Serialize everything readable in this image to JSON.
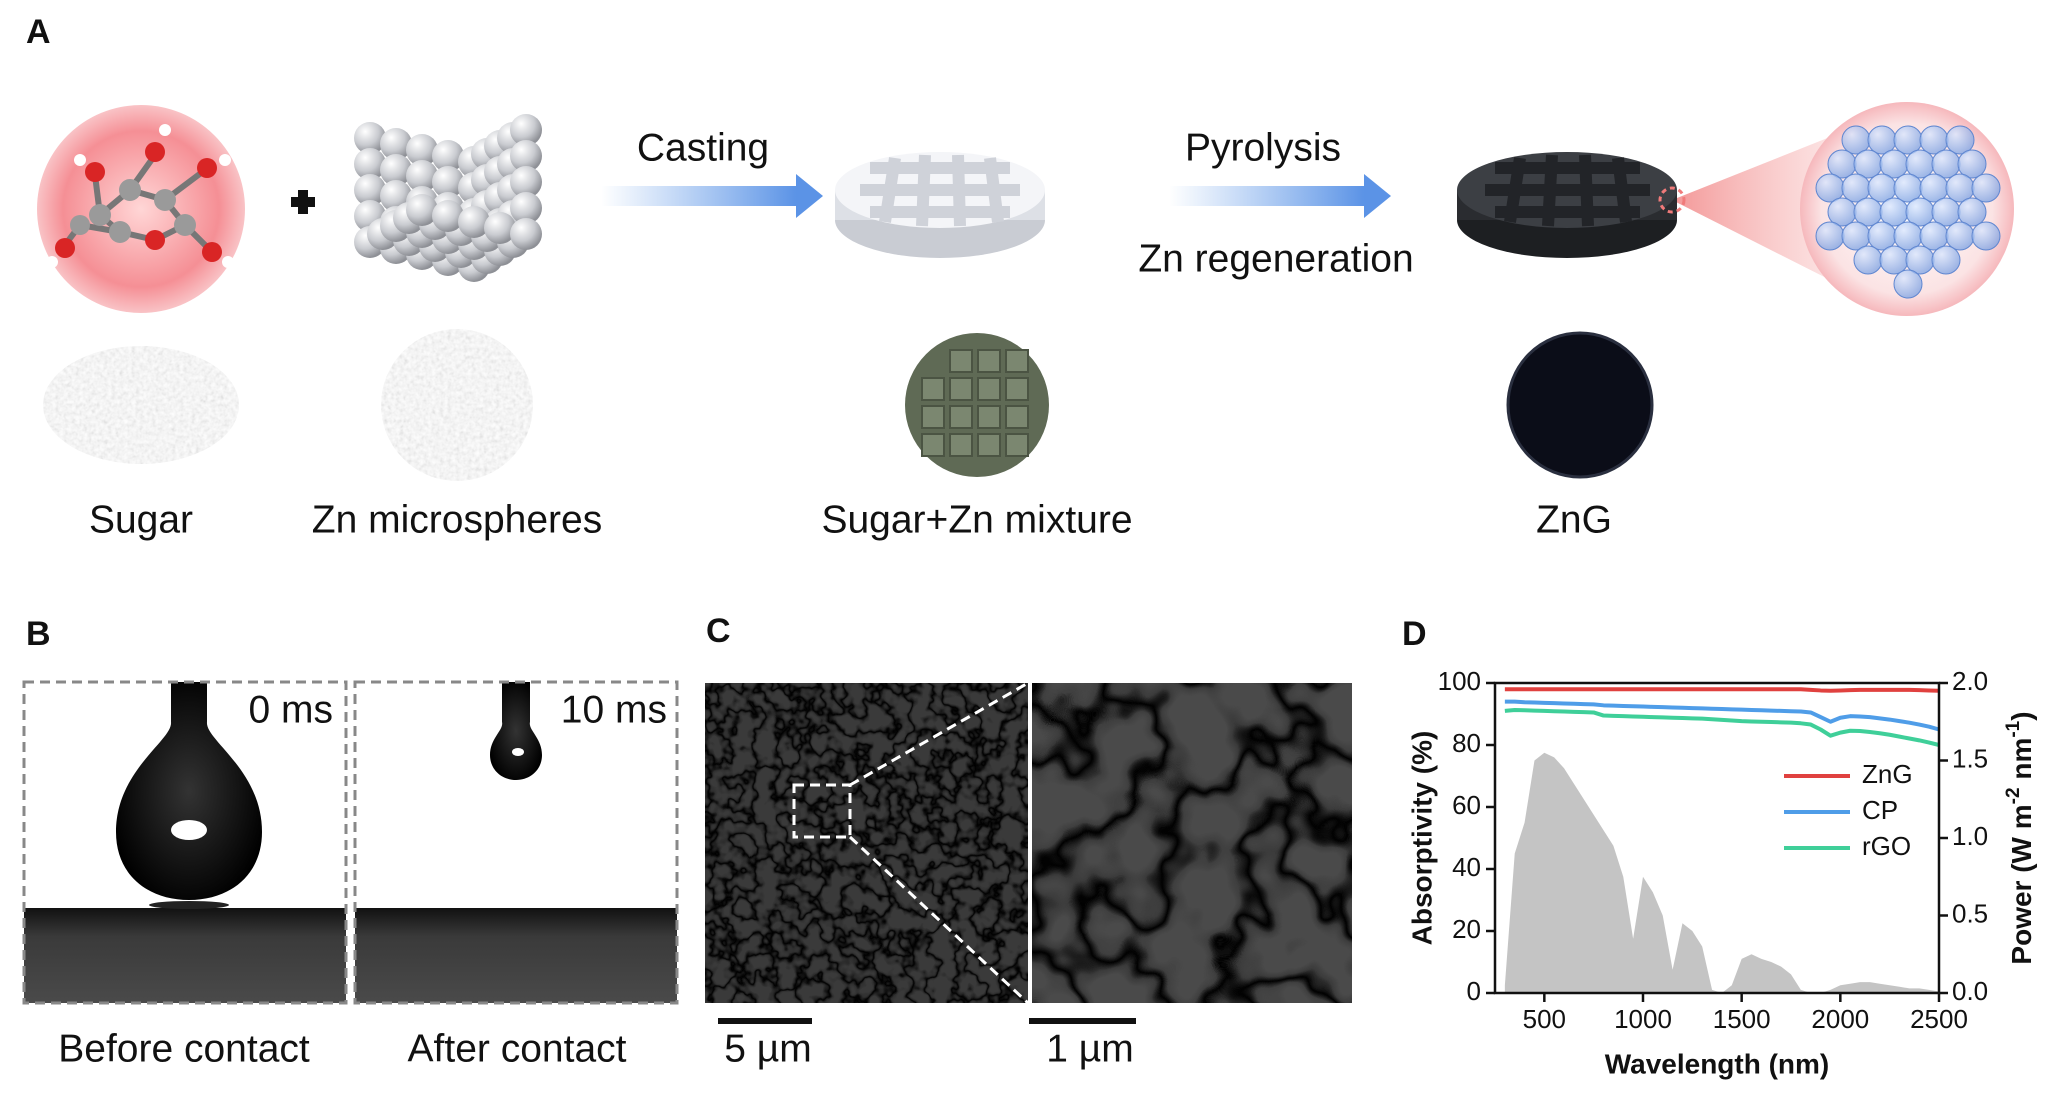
{
  "panel_a": {
    "label": "A",
    "casting": "Casting",
    "pyrolysis": "Pyrolysis",
    "zn_regeneration": "Zn regeneration",
    "captions": [
      "Sugar",
      "Zn microspheres",
      "Sugar+Zn mixture",
      "ZnG"
    ]
  },
  "panel_b": {
    "label": "B",
    "times": [
      "0 ms",
      "10 ms"
    ],
    "captions": [
      "Before contact",
      "After contact"
    ]
  },
  "panel_c": {
    "label": "C",
    "scale_bars": [
      "5 µm",
      "1 µm"
    ]
  },
  "chart_data": {
    "type": "line",
    "panel_label": "D",
    "xlabel": "Wavelength (nm)",
    "ylabel": "Absorptivity (%)",
    "y2label": [
      "Power (W m",
      "-2",
      " nm",
      "-1",
      ")"
    ],
    "x": [
      300,
      350,
      400,
      450,
      500,
      550,
      600,
      650,
      700,
      750,
      800,
      850,
      900,
      950,
      1000,
      1050,
      1100,
      1150,
      1200,
      1250,
      1300,
      1350,
      1400,
      1450,
      1500,
      1550,
      1600,
      1650,
      1700,
      1750,
      1800,
      1850,
      1900,
      1950,
      2000,
      2050,
      2100,
      2150,
      2200,
      2250,
      2300,
      2350,
      2400,
      2450,
      2500
    ],
    "xlim": [
      250,
      2500
    ],
    "xticks": [
      500,
      1000,
      1500,
      2000,
      2500
    ],
    "ylim": [
      0,
      100
    ],
    "yticks": [
      0,
      20,
      40,
      60,
      80,
      100
    ],
    "y2lim": [
      0,
      2
    ],
    "y2ticks": [
      {
        "value": 0,
        "label": "0.0"
      },
      0.5,
      {
        "value": 1,
        "label": "1.0"
      },
      1.5,
      {
        "value": 2,
        "label": "2.0"
      }
    ],
    "legend": "right",
    "series": [
      {
        "type": "area",
        "axis": "y2",
        "color": "#c4c4c4",
        "values": [
          0.05,
          0.9,
          1.1,
          1.5,
          1.55,
          1.52,
          1.45,
          1.35,
          1.25,
          1.15,
          1.05,
          0.95,
          0.75,
          0.35,
          0.75,
          0.65,
          0.5,
          0.15,
          0.45,
          0.4,
          0.3,
          0.02,
          0,
          0.05,
          0.22,
          0.25,
          0.22,
          0.2,
          0.17,
          0.12,
          0.02,
          0,
          0,
          0.02,
          0.05,
          0.06,
          0.07,
          0.07,
          0.06,
          0.05,
          0.04,
          0.03,
          0.03,
          0.02,
          0.01
        ]
      },
      {
        "name": "ZnG",
        "color": "#e0413f",
        "values": [
          98,
          98,
          98,
          98,
          98,
          98,
          98,
          98,
          98,
          98,
          98,
          98,
          98,
          98,
          98,
          98,
          98,
          98,
          98,
          98,
          98,
          98,
          98,
          98,
          98,
          98,
          98,
          98,
          98,
          98,
          98,
          97.8,
          97.6,
          97.5,
          97.6,
          97.7,
          97.8,
          97.8,
          97.8,
          97.8,
          97.8,
          97.8,
          97.7,
          97.6,
          97.5
        ]
      },
      {
        "name": "CP",
        "color": "#4f9de8",
        "values": [
          94,
          94,
          93.8,
          93.7,
          93.6,
          93.5,
          93.4,
          93.3,
          93.2,
          93.1,
          92.8,
          92.7,
          92.6,
          92.5,
          92.4,
          92.3,
          92.2,
          92.1,
          92,
          91.9,
          91.8,
          91.7,
          91.6,
          91.5,
          91.4,
          91.3,
          91.2,
          91.1,
          91,
          90.9,
          90.8,
          90.5,
          89,
          87.5,
          88.8,
          89.3,
          89.2,
          89,
          88.6,
          88.2,
          87.7,
          87.2,
          86.6,
          85.9,
          85
        ]
      },
      {
        "name": "rGO",
        "color": "#3fcf99",
        "values": [
          91,
          91.3,
          91.2,
          91.1,
          91,
          90.9,
          90.8,
          90.7,
          90.6,
          90.5,
          89.5,
          89.4,
          89.3,
          89.2,
          89.1,
          89,
          88.9,
          88.8,
          88.7,
          88.6,
          88.5,
          88.3,
          88.1,
          87.9,
          87.7,
          87.6,
          87.5,
          87.4,
          87.3,
          87.2,
          87,
          86.6,
          85,
          83,
          84,
          84.6,
          84.5,
          84.2,
          83.8,
          83.3,
          82.7,
          82.1,
          81.5,
          80.8,
          80
        ]
      }
    ]
  }
}
